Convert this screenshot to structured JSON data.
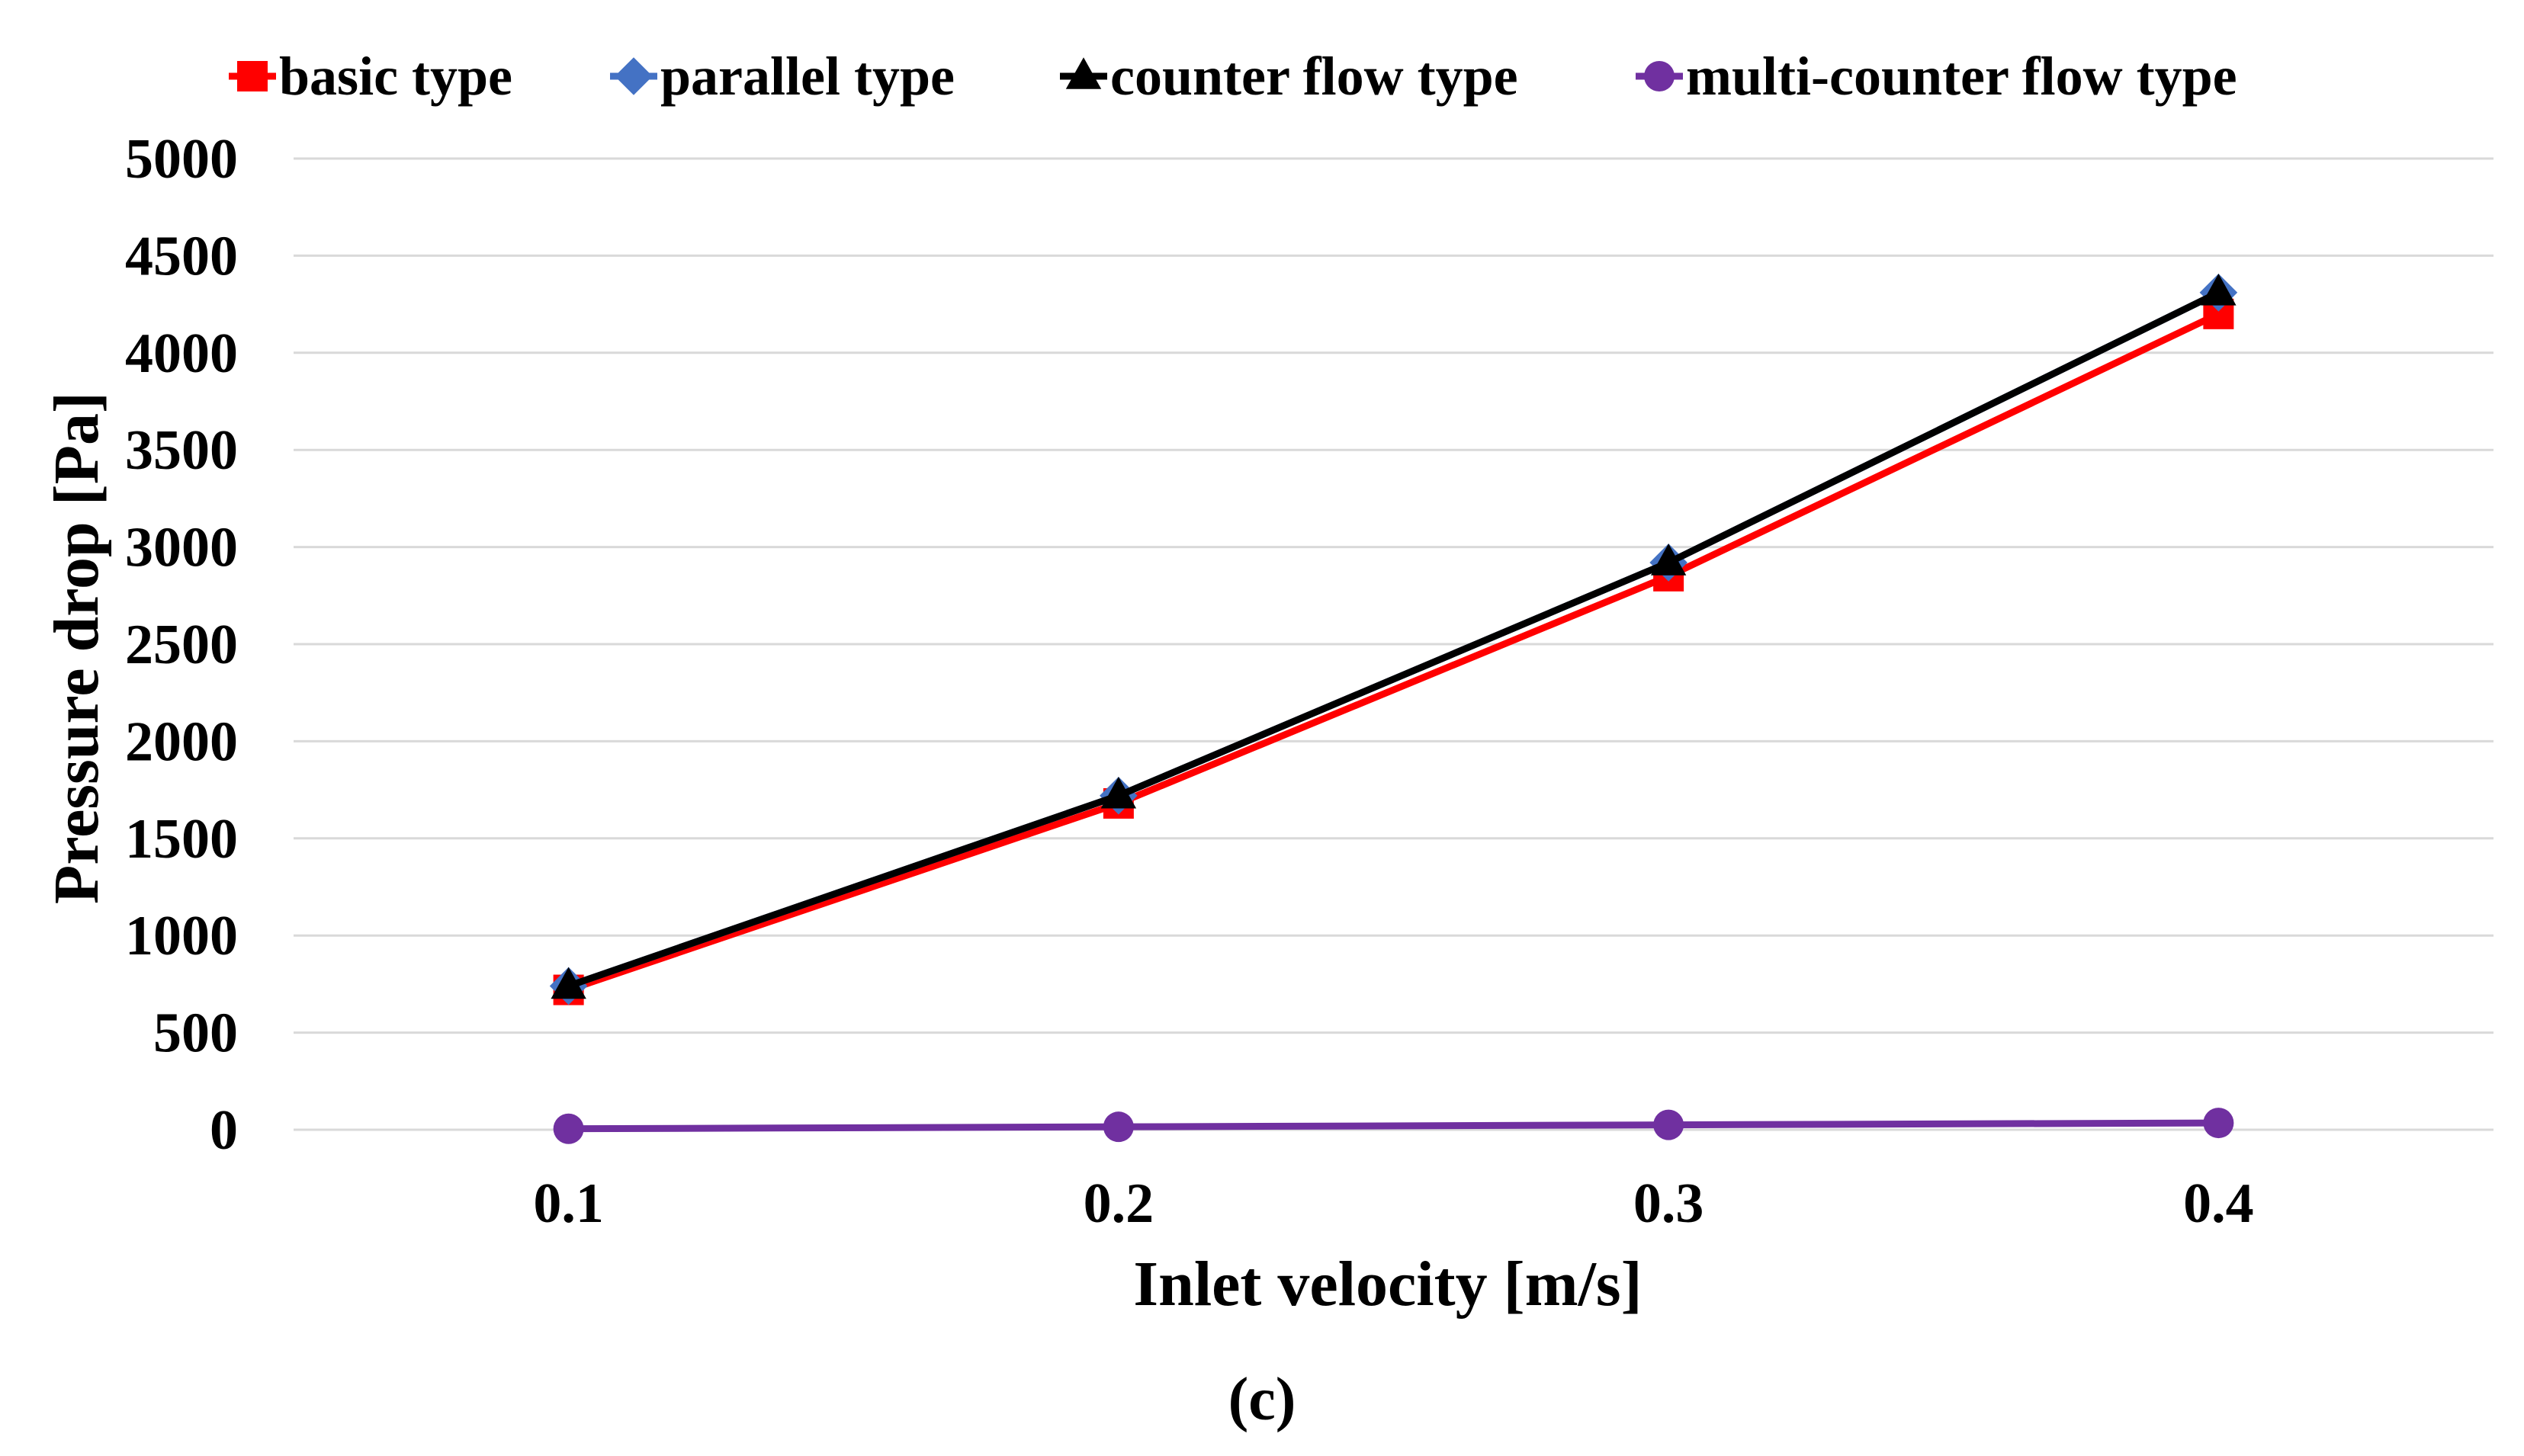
{
  "chart_data": {
    "type": "line",
    "title": "",
    "xlabel": "Inlet velocity [m/s]",
    "ylabel": "Pressure drop [Pa]",
    "caption": "(c)",
    "categories": [
      "0.1",
      "0.2",
      "0.3",
      "0.4"
    ],
    "ylim": [
      0,
      5000
    ],
    "yticks": [
      0,
      500,
      1000,
      1500,
      2000,
      2500,
      3000,
      3500,
      4000,
      4500,
      5000
    ],
    "grid": true,
    "legend_position": "top",
    "series": [
      {
        "name": "basic type",
        "values": [
          720,
          1680,
          2850,
          4200
        ],
        "color": "#ff0000",
        "marker": "square"
      },
      {
        "name": "parallel type",
        "values": [
          740,
          1720,
          2920,
          4310
        ],
        "color": "#4472c4",
        "marker": "diamond"
      },
      {
        "name": "counter flow type",
        "values": [
          740,
          1720,
          2920,
          4310
        ],
        "color": "#000000",
        "marker": "triangle"
      },
      {
        "name": "multi-counter flow type",
        "values": [
          5,
          15,
          25,
          35
        ],
        "color": "#7030a0",
        "marker": "circle"
      }
    ]
  }
}
